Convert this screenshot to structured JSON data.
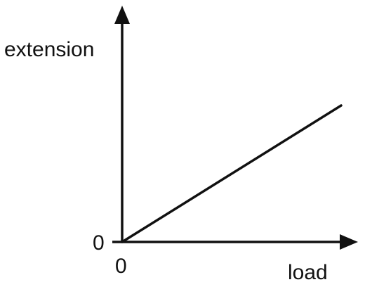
{
  "chart_data": {
    "type": "line",
    "title": "",
    "xlabel": "load",
    "ylabel": "extension",
    "x_origin_label": "0",
    "y_origin_label": "0",
    "series": [
      {
        "x": [
          0,
          1
        ],
        "y": [
          0,
          1
        ]
      }
    ],
    "grid": false,
    "legend": "none",
    "colors": {
      "axis": "#111111",
      "line": "#111111"
    }
  }
}
